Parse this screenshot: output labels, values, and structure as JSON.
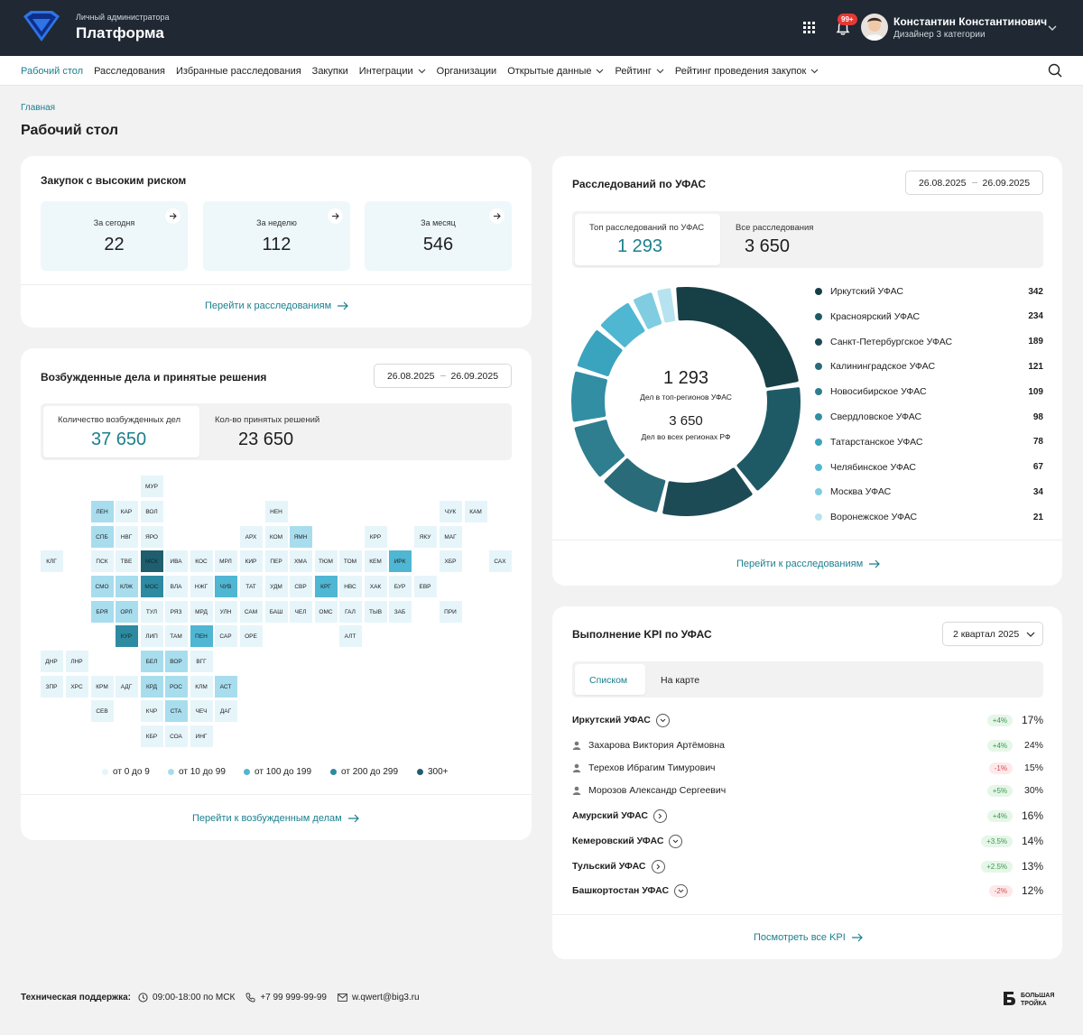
{
  "header": {
    "subtitle": "Личный администратора",
    "title": "Платформа",
    "notifications_badge": "99+",
    "user_name": "Константин Константинович",
    "user_role": "Дизайнер 3 категории"
  },
  "nav": {
    "items": [
      {
        "label": "Рабочий стол",
        "active": true,
        "dropdown": false
      },
      {
        "label": "Расследования",
        "active": false,
        "dropdown": false
      },
      {
        "label": "Избранные расследования",
        "active": false,
        "dropdown": false
      },
      {
        "label": "Закупки",
        "active": false,
        "dropdown": false
      },
      {
        "label": "Интеграции",
        "active": false,
        "dropdown": true
      },
      {
        "label": "Организации",
        "active": false,
        "dropdown": false
      },
      {
        "label": "Открытые данные",
        "active": false,
        "dropdown": true
      },
      {
        "label": "Рейтинг",
        "active": false,
        "dropdown": true
      },
      {
        "label": "Рейтинг проведения закупок",
        "active": false,
        "dropdown": true
      }
    ]
  },
  "breadcrumb": "Главная",
  "page_title": "Рабочий стол",
  "risk": {
    "title": "Закупок с высоким риском",
    "boxes": [
      {
        "label": "За сегодня",
        "value": "22"
      },
      {
        "label": "За неделю",
        "value": "112"
      },
      {
        "label": "За месяц",
        "value": "546"
      }
    ],
    "link": "Перейти к расследованиям"
  },
  "cases": {
    "title": "Возбужденные дела и принятые решения",
    "date_from": "26.08.2025",
    "date_to": "26.09.2025",
    "tab1_label": "Количество возбужденных дел",
    "tab1_value": "37 650",
    "tab2_label": "Кол-во принятых решений",
    "tab2_value": "23 650",
    "legend": [
      {
        "label": "от 0 до 9",
        "color": "#e6f5fa"
      },
      {
        "label": "от 10 до 99",
        "color": "#a8ddee"
      },
      {
        "label": "от 100 до 199",
        "color": "#4fb6d3"
      },
      {
        "label": "от 200 до 299",
        "color": "#2e8aa1"
      },
      {
        "label": "300+",
        "color": "#1f5e6e"
      }
    ],
    "map": [
      {
        "code": "МУР",
        "level": 0
      },
      {
        "code": "ЛЕН",
        "level": 1
      },
      {
        "code": "КАР",
        "level": 0
      },
      {
        "code": "ВОЛ",
        "level": 0
      },
      {
        "code": "НЕН",
        "level": 0
      },
      {
        "code": "ЧУК",
        "level": 0
      },
      {
        "code": "КАМ",
        "level": 0
      },
      {
        "code": "СПБ",
        "level": 1
      },
      {
        "code": "НВГ",
        "level": 0
      },
      {
        "code": "ЯРО",
        "level": 0
      },
      {
        "code": "АРХ",
        "level": 0
      },
      {
        "code": "КОМ",
        "level": 0
      },
      {
        "code": "ЯМН",
        "level": 1
      },
      {
        "code": "КРР",
        "level": 0
      },
      {
        "code": "ЯКУ",
        "level": 0
      },
      {
        "code": "МАГ",
        "level": 0
      },
      {
        "code": "КЛГ",
        "level": 0
      },
      {
        "code": "ПСК",
        "level": 0
      },
      {
        "code": "ТВЕ",
        "level": 0
      },
      {
        "code": "МСК",
        "level": 4
      },
      {
        "code": "ИВА",
        "level": 0
      },
      {
        "code": "КОС",
        "level": 0
      },
      {
        "code": "МРЛ",
        "level": 0
      },
      {
        "code": "КИР",
        "level": 0
      },
      {
        "code": "ПЕР",
        "level": 0
      },
      {
        "code": "ХМА",
        "level": 0
      },
      {
        "code": "ТЮМ",
        "level": 0
      },
      {
        "code": "ТОМ",
        "level": 0
      },
      {
        "code": "КЕМ",
        "level": 0
      },
      {
        "code": "ИРК",
        "level": 2
      },
      {
        "code": "ХБР",
        "level": 0
      },
      {
        "code": "САХ",
        "level": 0
      },
      {
        "code": "СМО",
        "level": 1
      },
      {
        "code": "КЛЖ",
        "level": 1
      },
      {
        "code": "МОС",
        "level": 3
      },
      {
        "code": "ВЛА",
        "level": 0
      },
      {
        "code": "НЖГ",
        "level": 0
      },
      {
        "code": "ЧУВ",
        "level": 2
      },
      {
        "code": "ТАТ",
        "level": 0
      },
      {
        "code": "УДМ",
        "level": 0
      },
      {
        "code": "СВР",
        "level": 0
      },
      {
        "code": "КРГ",
        "level": 2
      },
      {
        "code": "НВС",
        "level": 0
      },
      {
        "code": "ХАК",
        "level": 0
      },
      {
        "code": "БУР",
        "level": 0
      },
      {
        "code": "ЕВР",
        "level": 0
      },
      {
        "code": "БРЯ",
        "level": 1
      },
      {
        "code": "ОРЛ",
        "level": 1
      },
      {
        "code": "ТУЛ",
        "level": 0
      },
      {
        "code": "РЯЗ",
        "level": 0
      },
      {
        "code": "МРД",
        "level": 0
      },
      {
        "code": "УЛН",
        "level": 0
      },
      {
        "code": "САМ",
        "level": 0
      },
      {
        "code": "БАШ",
        "level": 0
      },
      {
        "code": "ЧЕЛ",
        "level": 0
      },
      {
        "code": "ОМС",
        "level": 0
      },
      {
        "code": "ГАЛ",
        "level": 0
      },
      {
        "code": "ТЫВ",
        "level": 0
      },
      {
        "code": "ЗАБ",
        "level": 0
      },
      {
        "code": "ПРИ",
        "level": 0
      },
      {
        "code": "КУР",
        "level": 3
      },
      {
        "code": "ЛИП",
        "level": 0
      },
      {
        "code": "ТАМ",
        "level": 0
      },
      {
        "code": "ПЕН",
        "level": 2
      },
      {
        "code": "САР",
        "level": 0
      },
      {
        "code": "ОРЕ",
        "level": 0
      },
      {
        "code": "АЛТ",
        "level": 0
      },
      {
        "code": "ДНР",
        "level": 0
      },
      {
        "code": "ЛНР",
        "level": 0
      },
      {
        "code": "БЕЛ",
        "level": 1
      },
      {
        "code": "ВОР",
        "level": 1
      },
      {
        "code": "ВГГ",
        "level": 0
      },
      {
        "code": "ЗПР",
        "level": 0
      },
      {
        "code": "ХРС",
        "level": 0
      },
      {
        "code": "КРМ",
        "level": 0
      },
      {
        "code": "АДГ",
        "level": 0
      },
      {
        "code": "КРД",
        "level": 1
      },
      {
        "code": "РОС",
        "level": 1
      },
      {
        "code": "КЛМ",
        "level": 0
      },
      {
        "code": "АСТ",
        "level": 1
      },
      {
        "code": "СЕВ",
        "level": 0
      },
      {
        "code": "КЧР",
        "level": 0
      },
      {
        "code": "СТА",
        "level": 1
      },
      {
        "code": "ЧЕЧ",
        "level": 0
      },
      {
        "code": "ДАГ",
        "level": 0
      },
      {
        "code": "КБР",
        "level": 0
      },
      {
        "code": "СОА",
        "level": 0
      },
      {
        "code": "ИНГ",
        "level": 0
      }
    ],
    "link": "Перейти к возбужденным делам"
  },
  "investigations": {
    "title": "Расследований по УФАС",
    "date_from": "26.08.2025",
    "date_to": "26.09.2025",
    "tab1_label": "Топ расследований по УФАС",
    "tab1_value": "1 293",
    "tab2_label": "Все расследования",
    "tab2_value": "3 650",
    "donut_top_value": "1 293",
    "donut_top_label": "Дел в топ-регионов УФАС",
    "donut_all_value": "3 650",
    "donut_all_label": "Дел во всех регионах РФ",
    "link": "Перейти к расследованиям"
  },
  "chart_data": {
    "type": "pie",
    "variant": "donut",
    "categories": [
      "Иркутский УФАС",
      "Красноярский УФАС",
      "Санкт-Петербургское УФАС",
      "Калининградское УФАС",
      "Новосибирское УФАС",
      "Свердловское УФАС",
      "Татарстанское УФАС",
      "Челябинское УФАС",
      "Москва УФАС",
      "Воронежское УФАС"
    ],
    "values": [
      342,
      234,
      189,
      121,
      109,
      98,
      78,
      67,
      34,
      21
    ],
    "colors": [
      "#173f46",
      "#1e5a66",
      "#1d4b55",
      "#2a6b7a",
      "#2e7e8f",
      "#318ea3",
      "#3aa3bd",
      "#50b7d2",
      "#80cde2",
      "#b6e3ef"
    ],
    "legend_position": "right"
  },
  "kpi": {
    "title": "Выполнение KPI по УФАС",
    "period": "2 квартал 2025",
    "tab_list": "Списком",
    "tab_map": "На карте",
    "rows": [
      {
        "name": "Иркутский УФАС",
        "delta": "+4%",
        "value": "17%",
        "kind": "grp",
        "pos": true,
        "btn": "down"
      },
      {
        "name": "Захарова Виктория Артёмовна",
        "delta": "+4%",
        "value": "24%",
        "kind": "sub",
        "pos": true
      },
      {
        "name": "Терехов Ибрагим Тимурович",
        "delta": "-1%",
        "value": "15%",
        "kind": "sub",
        "pos": false
      },
      {
        "name": "Морозов Александр Сергеевич",
        "delta": "+5%",
        "value": "30%",
        "kind": "sub",
        "pos": true
      },
      {
        "name": "Амурский УФАС",
        "delta": "+4%",
        "value": "16%",
        "kind": "grp",
        "pos": true,
        "btn": "right"
      },
      {
        "name": "Кемеровский УФАС",
        "delta": "+3.5%",
        "value": "14%",
        "kind": "grp",
        "pos": true,
        "btn": "down"
      },
      {
        "name": "Тульский УФАС",
        "delta": "+2.5%",
        "value": "13%",
        "kind": "grp",
        "pos": true,
        "btn": "right"
      },
      {
        "name": "Башкортостан УФАС",
        "delta": "-2%",
        "value": "12%",
        "kind": "grp",
        "pos": false,
        "btn": "down"
      }
    ],
    "link": "Посмотреть все KPI"
  },
  "footer": {
    "support_label": "Техническая поддержка:",
    "hours": "09:00-18:00 по МСК",
    "phone": "+7 99 999-99-99",
    "email": "w.qwert@big3.ru",
    "company": "БОЛЬШАЯ ТРОЙКА"
  }
}
